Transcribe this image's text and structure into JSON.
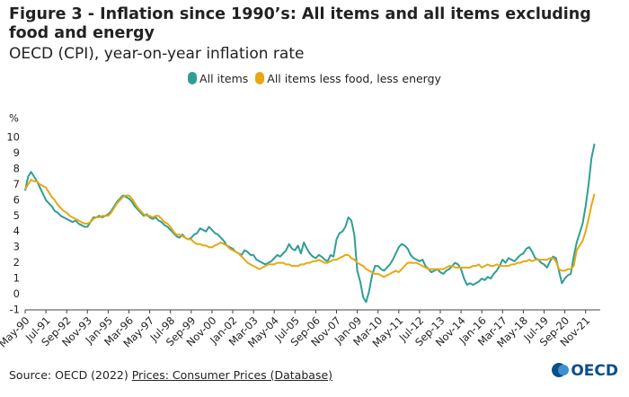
{
  "chart_data": {
    "type": "line",
    "title": "Figure 3 - Inflation since 1990’s: All items and all items excluding food and energy",
    "subtitle": "OECD (CPI), year-on-year inflation rate",
    "y_label": "%",
    "source": "Source: OECD (2022)",
    "source_link": "Prices: Consumer Prices (Database)",
    "logo": "OECD",
    "categories": [
      "May-90",
      null,
      null,
      null,
      null,
      null,
      null,
      "Jul-91",
      null,
      null,
      null,
      null,
      null,
      null,
      "Sep-92",
      null,
      null,
      null,
      null,
      null,
      null,
      "Nov-93",
      null,
      null,
      null,
      null,
      null,
      null,
      "Jan-95",
      null,
      null,
      null,
      null,
      null,
      null,
      "Mar-96",
      null,
      null,
      null,
      null,
      null,
      null,
      "May-97",
      null,
      null,
      null,
      null,
      null,
      null,
      "Jul-98",
      null,
      null,
      null,
      null,
      null,
      null,
      "Sep-99",
      null,
      null,
      null,
      null,
      null,
      null,
      "Nov-00",
      null,
      null,
      null,
      null,
      null,
      null,
      "Jan-02",
      null,
      null,
      null,
      null,
      null,
      null,
      "Mar-03",
      null,
      null,
      null,
      null,
      null,
      null,
      "May-04",
      null,
      null,
      null,
      null,
      null,
      null,
      "Jul-05",
      null,
      null,
      null,
      null,
      null,
      null,
      "Sep-06",
      null,
      null,
      null,
      null,
      null,
      null,
      "Nov-07",
      null,
      null,
      null,
      null,
      null,
      null,
      "Jan-09",
      null,
      null,
      null,
      null,
      null,
      null,
      "Mar-10",
      null,
      null,
      null,
      null,
      null,
      null,
      "May-11",
      null,
      null,
      null,
      null,
      null,
      null,
      "Jul-12",
      null,
      null,
      null,
      null,
      null,
      null,
      "Sep-13",
      null,
      null,
      null,
      null,
      null,
      null,
      "Nov-14",
      null,
      null,
      null,
      null,
      null,
      null,
      "Jan-16",
      null,
      null,
      null,
      null,
      null,
      null,
      "Mar-17",
      null,
      null,
      null,
      null,
      null,
      null,
      "May-18",
      null,
      null,
      null,
      null,
      null,
      null,
      "Jul-19",
      null,
      null,
      null,
      null,
      null,
      null,
      "Sep-20",
      null,
      null,
      null,
      null,
      null,
      null,
      "Nov-21",
      null,
      null,
      null
    ],
    "series": [
      {
        "name": "All items",
        "color": "#2f9e96",
        "values": [
          6.6,
          7.5,
          7.8,
          7.5,
          7.2,
          6.8,
          6.4,
          6.0,
          5.8,
          5.6,
          5.3,
          5.2,
          5.0,
          4.9,
          4.8,
          4.7,
          4.6,
          4.7,
          4.5,
          4.4,
          4.3,
          4.3,
          4.6,
          4.9,
          4.9,
          5.0,
          4.9,
          5.0,
          5.1,
          5.3,
          5.6,
          5.9,
          6.1,
          6.3,
          6.2,
          6.1,
          5.9,
          5.6,
          5.4,
          5.2,
          5.0,
          5.1,
          4.9,
          4.8,
          4.9,
          4.7,
          4.6,
          4.4,
          4.3,
          4.1,
          3.9,
          3.7,
          3.6,
          3.8,
          3.6,
          3.5,
          3.6,
          3.8,
          3.9,
          4.2,
          4.1,
          4.0,
          4.3,
          4.1,
          3.9,
          3.8,
          3.6,
          3.4,
          3.1,
          3.0,
          2.9,
          2.7,
          2.6,
          2.5,
          2.8,
          2.7,
          2.5,
          2.5,
          2.2,
          2.1,
          2.0,
          1.9,
          2.0,
          2.1,
          2.3,
          2.5,
          2.4,
          2.6,
          2.8,
          3.2,
          2.9,
          2.8,
          3.1,
          2.6,
          3.3,
          2.9,
          2.6,
          2.4,
          2.3,
          2.5,
          2.4,
          2.2,
          2.1,
          2.5,
          2.4,
          3.5,
          3.9,
          4.0,
          4.3,
          4.9,
          4.7,
          3.8,
          1.5,
          0.8,
          -0.2,
          -0.5,
          0.2,
          1.2,
          1.8,
          1.8,
          1.6,
          1.5,
          1.7,
          1.9,
          2.2,
          2.6,
          3.0,
          3.2,
          3.1,
          2.9,
          2.5,
          2.3,
          2.2,
          2.1,
          2.2,
          1.8,
          1.6,
          1.4,
          1.5,
          1.6,
          1.4,
          1.3,
          1.5,
          1.6,
          1.8,
          2.0,
          1.9,
          1.6,
          1.0,
          0.6,
          0.7,
          0.6,
          0.7,
          0.8,
          1.0,
          0.9,
          1.1,
          1.0,
          1.3,
          1.5,
          1.8,
          2.2,
          2.0,
          2.3,
          2.2,
          2.1,
          2.3,
          2.5,
          2.6,
          2.9,
          3.0,
          2.7,
          2.3,
          2.2,
          2.0,
          1.9,
          1.7,
          2.1,
          2.4,
          2.3,
          1.5,
          0.7,
          1.0,
          1.2,
          1.3,
          2.4,
          3.3,
          3.9,
          4.5,
          5.6,
          7.0,
          8.7,
          9.6
        ]
      },
      {
        "name": "All items less food, less energy",
        "color": "#e8a812",
        "values": [
          6.7,
          7.0,
          7.3,
          7.2,
          7.2,
          7.0,
          6.9,
          6.8,
          6.5,
          6.2,
          6.0,
          5.7,
          5.5,
          5.3,
          5.2,
          5.0,
          4.9,
          4.8,
          4.7,
          4.6,
          4.5,
          4.5,
          4.6,
          4.8,
          4.9,
          4.9,
          5.0,
          5.0,
          5.0,
          5.2,
          5.5,
          5.8,
          6.0,
          6.2,
          6.3,
          6.3,
          6.1,
          5.8,
          5.5,
          5.3,
          5.1,
          5.0,
          5.0,
          4.9,
          5.0,
          5.0,
          4.8,
          4.6,
          4.5,
          4.3,
          4.0,
          3.8,
          3.8,
          3.7,
          3.6,
          3.5,
          3.5,
          3.3,
          3.2,
          3.2,
          3.1,
          3.1,
          3.0,
          3.0,
          3.1,
          3.2,
          3.3,
          3.2,
          3.1,
          2.9,
          2.8,
          2.7,
          2.6,
          2.4,
          2.2,
          2.0,
          1.9,
          1.8,
          1.7,
          1.6,
          1.7,
          1.8,
          1.9,
          1.9,
          1.9,
          2.0,
          2.0,
          2.0,
          1.9,
          1.9,
          1.8,
          1.8,
          1.8,
          1.9,
          1.9,
          2.0,
          2.0,
          2.1,
          2.1,
          2.2,
          2.1,
          2.0,
          2.0,
          2.1,
          2.2,
          2.2,
          2.3,
          2.4,
          2.5,
          2.5,
          2.3,
          2.2,
          2.0,
          1.9,
          1.8,
          1.6,
          1.5,
          1.4,
          1.3,
          1.3,
          1.2,
          1.1,
          1.2,
          1.3,
          1.4,
          1.5,
          1.4,
          1.6,
          1.8,
          2.0,
          2.0,
          2.0,
          2.0,
          1.9,
          1.8,
          1.7,
          1.6,
          1.6,
          1.6,
          1.6,
          1.6,
          1.6,
          1.7,
          1.8,
          1.8,
          1.7,
          1.7,
          1.7,
          1.7,
          1.7,
          1.7,
          1.8,
          1.8,
          1.9,
          1.7,
          1.8,
          1.9,
          1.8,
          1.8,
          1.9,
          1.8,
          1.8,
          1.8,
          1.8,
          1.9,
          1.9,
          2.0,
          2.0,
          2.1,
          2.1,
          2.2,
          2.1,
          2.2,
          2.2,
          2.2,
          2.2,
          2.2,
          2.3,
          2.3,
          2.1,
          1.6,
          1.5,
          1.5,
          1.6,
          1.6,
          1.8,
          2.8,
          3.1,
          3.4,
          4.0,
          4.8,
          5.7,
          6.4
        ]
      }
    ],
    "ylim": [
      -1,
      10
    ],
    "yticks": [
      -1,
      0,
      1,
      2,
      3,
      4,
      5,
      6,
      7,
      8,
      9,
      10
    ],
    "grid": false
  }
}
